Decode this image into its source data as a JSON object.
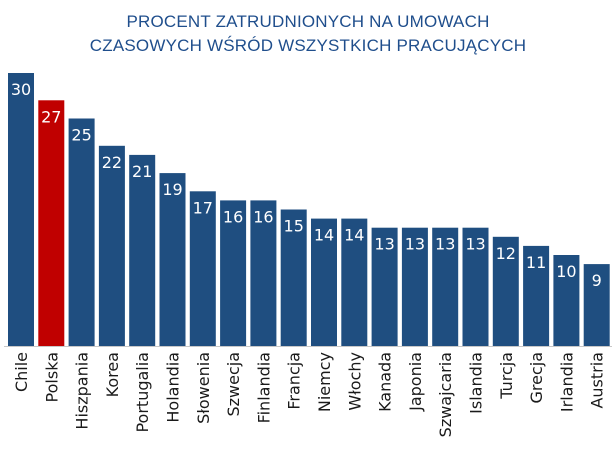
{
  "chart_data": {
    "type": "bar",
    "title_lines": [
      "PROCENT ZATRUDNIONYCH NA UMOWACH",
      "CZASOWYCH WŚRÓD WSZYSTKICH PRACUJĄCYCH"
    ],
    "categories": [
      "Chile",
      "Polska",
      "Hiszpania",
      "Korea",
      "Portugalia",
      "Holandia",
      "Słowenia",
      "Szwecja",
      "Finlandia",
      "Francja",
      "Niemcy",
      "Włochy",
      "Kanada",
      "Japonia",
      "Szwajcaria",
      "Islandia",
      "Turcja",
      "Grecja",
      "Irlandia",
      "Austria"
    ],
    "values": [
      30,
      27,
      25,
      22,
      21,
      19,
      17,
      16,
      16,
      15,
      14,
      14,
      13,
      13,
      13,
      13,
      12,
      11,
      10,
      9
    ],
    "highlight_category": "Polska",
    "xlabel": "",
    "ylabel": "",
    "ylim": [
      0,
      30
    ],
    "grid": false,
    "legend": "none"
  },
  "colors": {
    "bar": "#1f4e80",
    "highlight": "#c00000",
    "title": "#1f4e8c",
    "value_label": "#ffffff",
    "category_label": "#1a1a1a"
  }
}
